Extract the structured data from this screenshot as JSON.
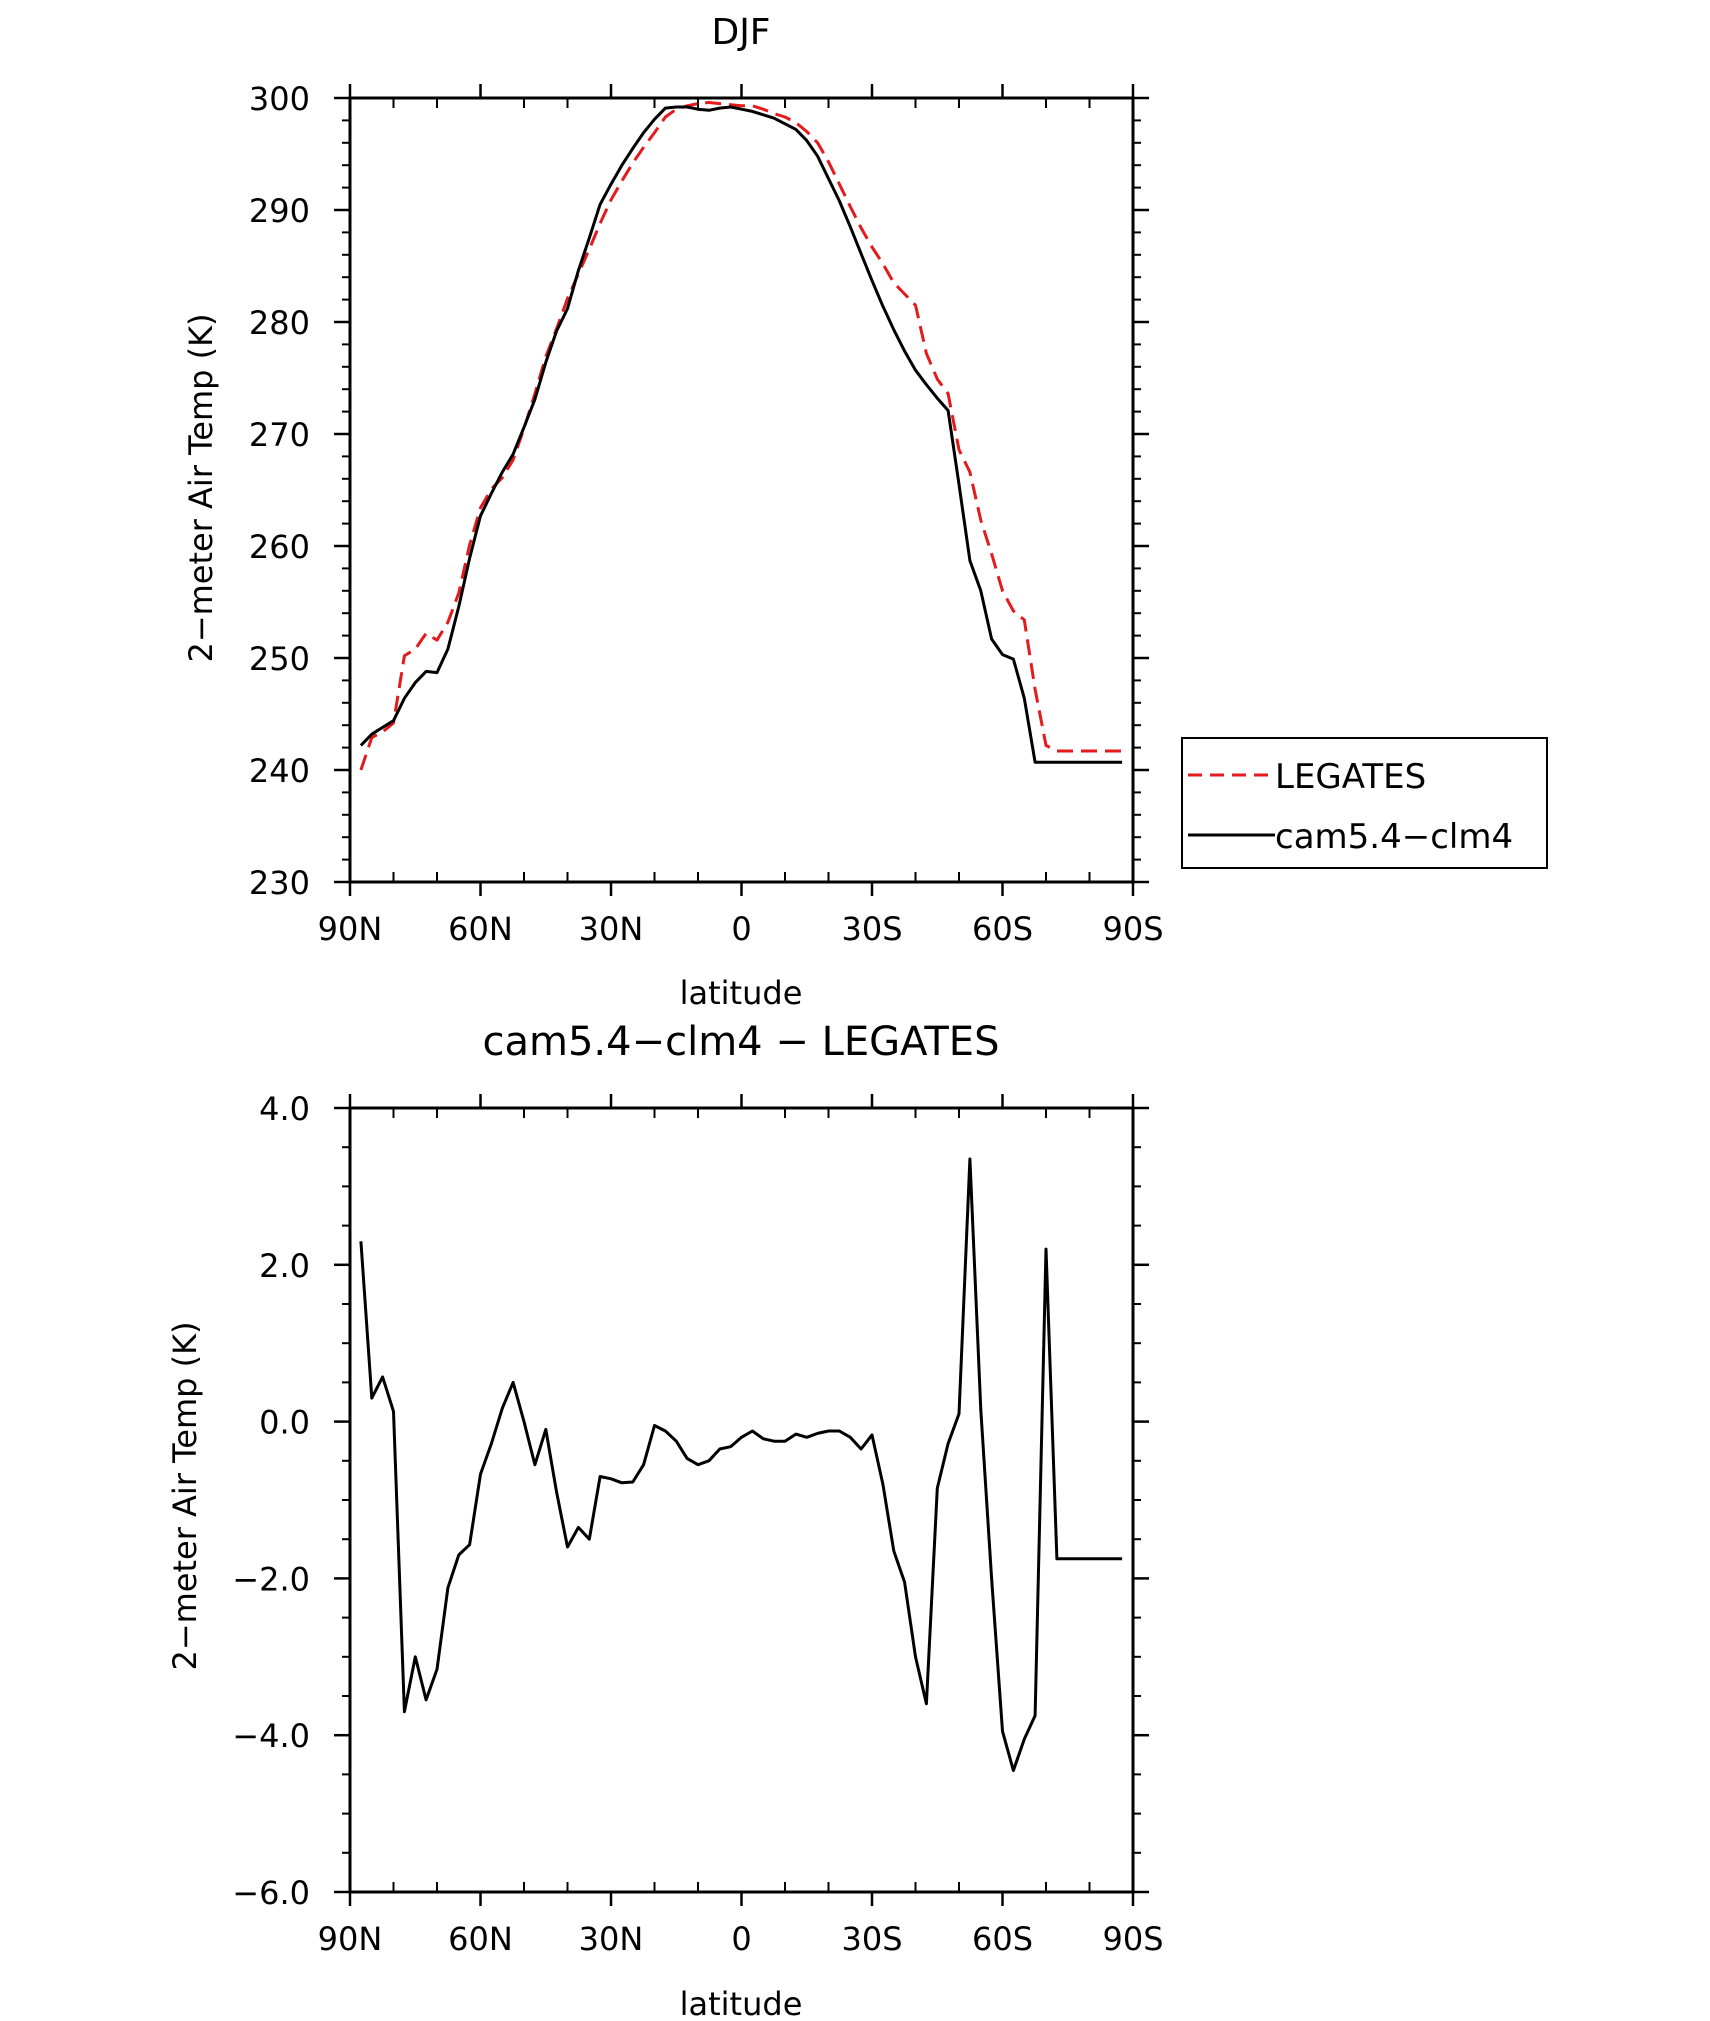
{
  "chart_data": [
    {
      "type": "line",
      "title": "DJF",
      "xlabel": "latitude",
      "ylabel": "2−meter Air Temp (K)",
      "xlim": [
        90,
        -90
      ],
      "ylim": [
        230,
        300
      ],
      "x_ticks": [
        {
          "value": 90,
          "label": "90N"
        },
        {
          "value": 60,
          "label": "60N"
        },
        {
          "value": 30,
          "label": "30N"
        },
        {
          "value": 0,
          "label": "0"
        },
        {
          "value": -30,
          "label": "30S"
        },
        {
          "value": -60,
          "label": "60S"
        },
        {
          "value": -90,
          "label": "90S"
        }
      ],
      "y_ticks": [
        {
          "value": 230,
          "label": "230"
        },
        {
          "value": 240,
          "label": "240"
        },
        {
          "value": 250,
          "label": "250"
        },
        {
          "value": 260,
          "label": "260"
        },
        {
          "value": 270,
          "label": "270"
        },
        {
          "value": 280,
          "label": "280"
        },
        {
          "value": 290,
          "label": "290"
        },
        {
          "value": 300,
          "label": "300"
        }
      ],
      "legend_position": "outside-right",
      "series": [
        {
          "name": "LEGATES",
          "color": "#e41a1c",
          "dash": "dashed",
          "x": [
            87.5,
            85,
            82.5,
            80,
            77.5,
            75,
            72.5,
            70,
            67.5,
            65,
            62.5,
            60,
            57.5,
            55,
            52.5,
            50,
            47.5,
            45,
            42.5,
            40,
            37.5,
            35,
            32.5,
            30,
            27.5,
            25,
            22.5,
            20,
            17.5,
            15,
            12.5,
            10,
            7.5,
            5,
            2.5,
            0,
            -2.5,
            -5,
            -7.5,
            -10,
            -12.5,
            -15,
            -17.5,
            -20,
            -22.5,
            -25,
            -27.5,
            -30,
            -32.5,
            -35,
            -37.5,
            -40,
            -42.5,
            -45,
            -47.5,
            -50,
            -52.5,
            -55,
            -57.5,
            -60,
            -62.5,
            -65,
            -67.5,
            -70,
            -72.5,
            -75,
            -77.5,
            -80,
            -82.5,
            -85,
            -87.5
          ],
          "y": [
            240,
            242.9,
            243.4,
            244.2,
            250.2,
            250.8,
            252.2,
            251.6,
            253.2,
            255.8,
            260.1,
            263.4,
            265.1,
            266.1,
            267.7,
            270.5,
            273.6,
            276.9,
            279.4,
            282.1,
            284.3,
            286.5,
            288.8,
            290.9,
            292.6,
            294.2,
            295.6,
            296.9,
            298.3,
            299,
            299.3,
            299.5,
            299.6,
            299.5,
            299.4,
            299.3,
            299.3,
            299,
            298.6,
            298.3,
            297.8,
            297,
            296,
            294.3,
            292.3,
            290.3,
            288.4,
            286.7,
            285.2,
            283.5,
            282.5,
            281.5,
            277.2,
            274.9,
            273.6,
            268.6,
            266.6,
            262.3,
            259.3,
            256,
            254.2,
            253.4,
            247.2,
            242.2,
            241.7,
            241.7,
            241.7,
            241.7,
            241.7,
            241.7,
            241.7
          ]
        },
        {
          "name": "cam5.4−clm4",
          "color": "#000000",
          "dash": "solid",
          "x": [
            87.5,
            85,
            82.5,
            80,
            77.5,
            75,
            72.5,
            70,
            67.5,
            65,
            62.5,
            60,
            57.5,
            55,
            52.5,
            50,
            47.5,
            45,
            42.5,
            40,
            37.5,
            35,
            32.5,
            30,
            27.5,
            25,
            22.5,
            20,
            17.5,
            15,
            12.5,
            10,
            7.5,
            5,
            2.5,
            0,
            -2.5,
            -5,
            -7.5,
            -10,
            -12.5,
            -15,
            -17.5,
            -20,
            -22.5,
            -25,
            -27.5,
            -30,
            -32.5,
            -35,
            -37.5,
            -40,
            -42.5,
            -45,
            -47.5,
            -50,
            -52.5,
            -55,
            -57.5,
            -60,
            -62.5,
            -65,
            -67.5,
            -70,
            -72.5,
            -75,
            -77.5,
            -80,
            -82.5,
            -85,
            -87.5
          ],
          "y": [
            242.2,
            243.2,
            243.8,
            244.4,
            246.4,
            247.8,
            248.8,
            248.7,
            250.8,
            254.6,
            258.9,
            262.7,
            264.7,
            266.6,
            268.2,
            270.6,
            273.1,
            276.4,
            279.2,
            281.2,
            284.6,
            287.5,
            290.5,
            292.3,
            294,
            295.5,
            296.9,
            298.1,
            299.1,
            299.2,
            299.2,
            299,
            298.9,
            299.1,
            299.2,
            299,
            298.8,
            298.5,
            298.2,
            297.7,
            297.2,
            296.2,
            294.8,
            292.8,
            290.8,
            288.5,
            286.1,
            283.7,
            281.4,
            279.3,
            277.4,
            275.7,
            274.4,
            273.2,
            272.1,
            265.5,
            258.7,
            256,
            251.7,
            250.3,
            249.9,
            246.4,
            240.7,
            240.7,
            240.7,
            240.7,
            240.7,
            240.7,
            240.7,
            240.7,
            240.7
          ]
        }
      ]
    },
    {
      "type": "line",
      "title": "cam5.4−clm4 − LEGATES",
      "xlabel": "latitude",
      "ylabel": "2−meter Air Temp (K)",
      "xlim": [
        90,
        -90
      ],
      "ylim": [
        -6.0,
        4.0
      ],
      "x_ticks": [
        {
          "value": 90,
          "label": "90N"
        },
        {
          "value": 60,
          "label": "60N"
        },
        {
          "value": 30,
          "label": "30N"
        },
        {
          "value": 0,
          "label": "0"
        },
        {
          "value": -30,
          "label": "30S"
        },
        {
          "value": -60,
          "label": "60S"
        },
        {
          "value": -90,
          "label": "90S"
        }
      ],
      "y_ticks": [
        {
          "value": 4.0,
          "label": "4.0"
        },
        {
          "value": 2.0,
          "label": "2.0"
        },
        {
          "value": 0.0,
          "label": "0.0"
        },
        {
          "value": -2.0,
          "label": "−2.0"
        },
        {
          "value": -4.0,
          "label": "−4.0"
        },
        {
          "value": -6.0,
          "label": "−6.0"
        }
      ],
      "series": [
        {
          "name": "",
          "color": "#000000",
          "dash": "solid",
          "x": [
            87.5,
            85,
            82.5,
            80,
            77.5,
            75,
            72.5,
            70,
            67.5,
            65,
            62.5,
            60,
            57.5,
            55,
            52.5,
            50,
            47.5,
            45,
            42.5,
            40,
            37.5,
            35,
            32.5,
            30,
            27.5,
            25,
            22.5,
            20,
            17.5,
            15,
            12.5,
            10,
            7.5,
            5,
            2.5,
            0,
            -2.5,
            -5,
            -7.5,
            -10,
            -12.5,
            -15,
            -17.5,
            -20,
            -22.5,
            -25,
            -27.5,
            -30,
            -32.5,
            -35,
            -37.5,
            -40,
            -42.5,
            -45,
            -47.5,
            -50,
            -52.5,
            -55,
            -57.5,
            -60,
            -62.5,
            -65,
            -67.5,
            -70,
            -72.5,
            -75,
            -77.5,
            -80,
            -82.5,
            -85,
            -87.5
          ],
          "y": [
            2.3,
            0.3,
            0.57,
            0.13,
            -3.7,
            -3.0,
            -3.55,
            -3.16,
            -2.12,
            -1.7,
            -1.57,
            -0.67,
            -0.28,
            0.17,
            0.5,
            0.0,
            -0.55,
            -0.1,
            -0.9,
            -1.6,
            -1.35,
            -1.5,
            -0.7,
            -0.73,
            -0.78,
            -0.77,
            -0.55,
            -0.05,
            -0.12,
            -0.25,
            -0.47,
            -0.55,
            -0.5,
            -0.35,
            -0.32,
            -0.2,
            -0.12,
            -0.22,
            -0.25,
            -0.25,
            -0.16,
            -0.2,
            -0.15,
            -0.12,
            -0.12,
            -0.2,
            -0.35,
            -0.17,
            -0.8,
            -1.65,
            -2.05,
            -3.0,
            -3.6,
            -0.85,
            -0.28,
            0.1,
            3.35,
            0.15,
            -2.0,
            -3.95,
            -4.45,
            -4.05,
            -3.75,
            2.2,
            -1.75,
            -1.75,
            -1.75,
            -1.75,
            -1.75,
            -1.75,
            -1.75
          ]
        }
      ]
    }
  ]
}
